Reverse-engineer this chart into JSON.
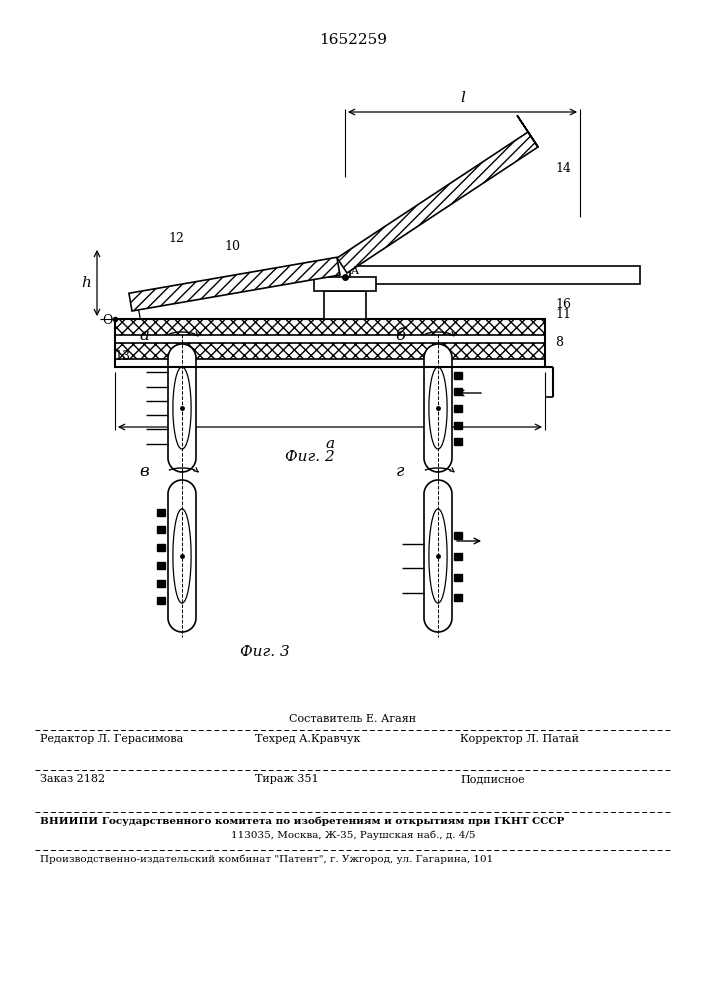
{
  "patent_number": "1652259",
  "fig2_label": "Фиг. 2",
  "fig3_label": "Фиг. 3",
  "bg_color": "#ffffff",
  "footer": {
    "sostavitel": "Составитель Е. Агаян",
    "redaktor": "Редактор Л. Герасимова",
    "tehred": "Техред А.Кравчук",
    "korrektor": "Корректор Л. Патай",
    "zakaz": "Заказ 2182",
    "tirazh": "Тираж 351",
    "podpisnoe": "Подписное",
    "vniip1": "ВНИИПИ Государственного комитета по изобретениям и открытиям при ГКНТ СССР",
    "vniip2": "113035, Москва, Ж-35, Раушская наб., д. 4/5",
    "proizv": "Производственно-издательский комбинат \"Патент\", г. Ужгород, ул. Гагарина, 101"
  }
}
